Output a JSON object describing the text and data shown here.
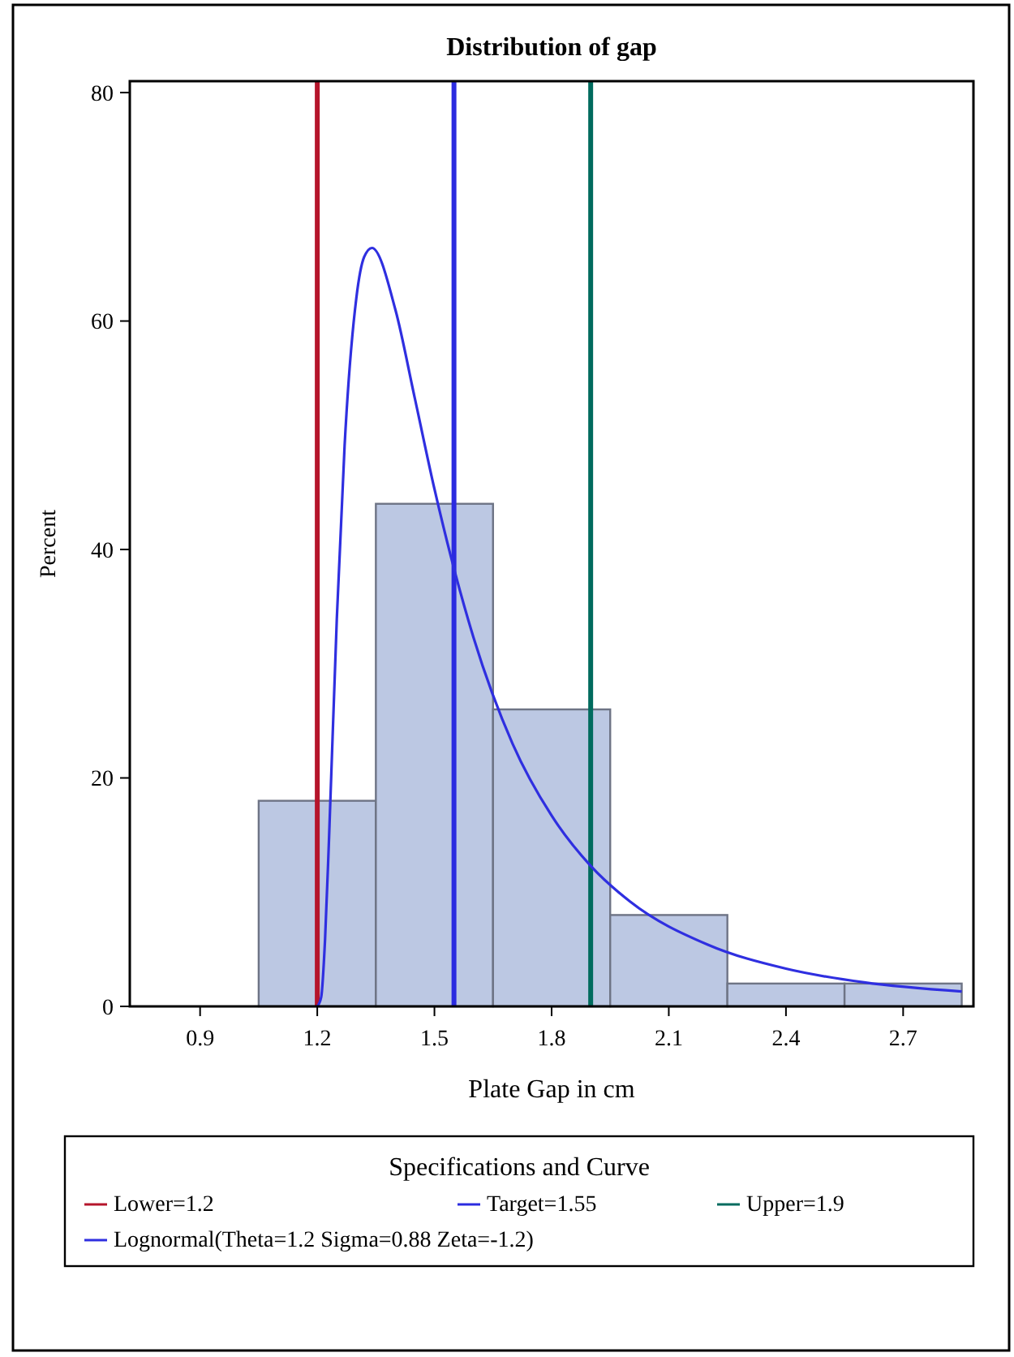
{
  "chart_data": {
    "type": "histogram",
    "title": "Distribution of gap",
    "xlabel": "Plate Gap in cm",
    "ylabel": "Percent",
    "legend_title": "Specifications and Curve",
    "legend": "bottom",
    "bins": [
      1.05,
      1.35,
      1.65,
      1.95,
      2.25,
      2.55,
      2.85
    ],
    "values": [
      18,
      44,
      26,
      8,
      2,
      2
    ],
    "color": "#bcc8e3",
    "xlim": [
      0.72,
      2.88
    ],
    "ylim": [
      0,
      81
    ],
    "xticks": [
      0.9,
      1.2,
      1.5,
      1.8,
      2.1,
      2.4,
      2.7
    ],
    "yticks": [
      0,
      20,
      40,
      60,
      80
    ],
    "series": [
      {
        "type": "line",
        "name": "Lognormal(Theta=1.2 Sigma=0.88 Zeta=-1.2)",
        "color": "#2f2fe0",
        "x": [
          1.2,
          1.21,
          1.22,
          1.23,
          1.25,
          1.27,
          1.3,
          1.32,
          1.34,
          1.4,
          1.45,
          1.5,
          1.6,
          1.7,
          1.8,
          1.9,
          2.0,
          2.2,
          2.4,
          2.6,
          2.85
        ],
        "values": [
          0,
          0.8,
          5.9,
          14.6,
          33.9,
          49.1,
          62,
          65.6,
          66.4,
          61,
          53.2,
          45.3,
          32.3,
          23,
          16.7,
          12.3,
          9.2,
          5.4,
          3.3,
          2.1,
          1.3
        ]
      }
    ],
    "ref_lines": [
      {
        "axis": "x",
        "value": 1.2,
        "label": "Lower=1.2",
        "color": "#b5152b"
      },
      {
        "axis": "x",
        "value": 1.55,
        "label": "Target=1.55",
        "color": "#2b2be0"
      },
      {
        "axis": "x",
        "value": 1.9,
        "label": "Upper=1.9",
        "color": "#006b5e"
      }
    ]
  }
}
